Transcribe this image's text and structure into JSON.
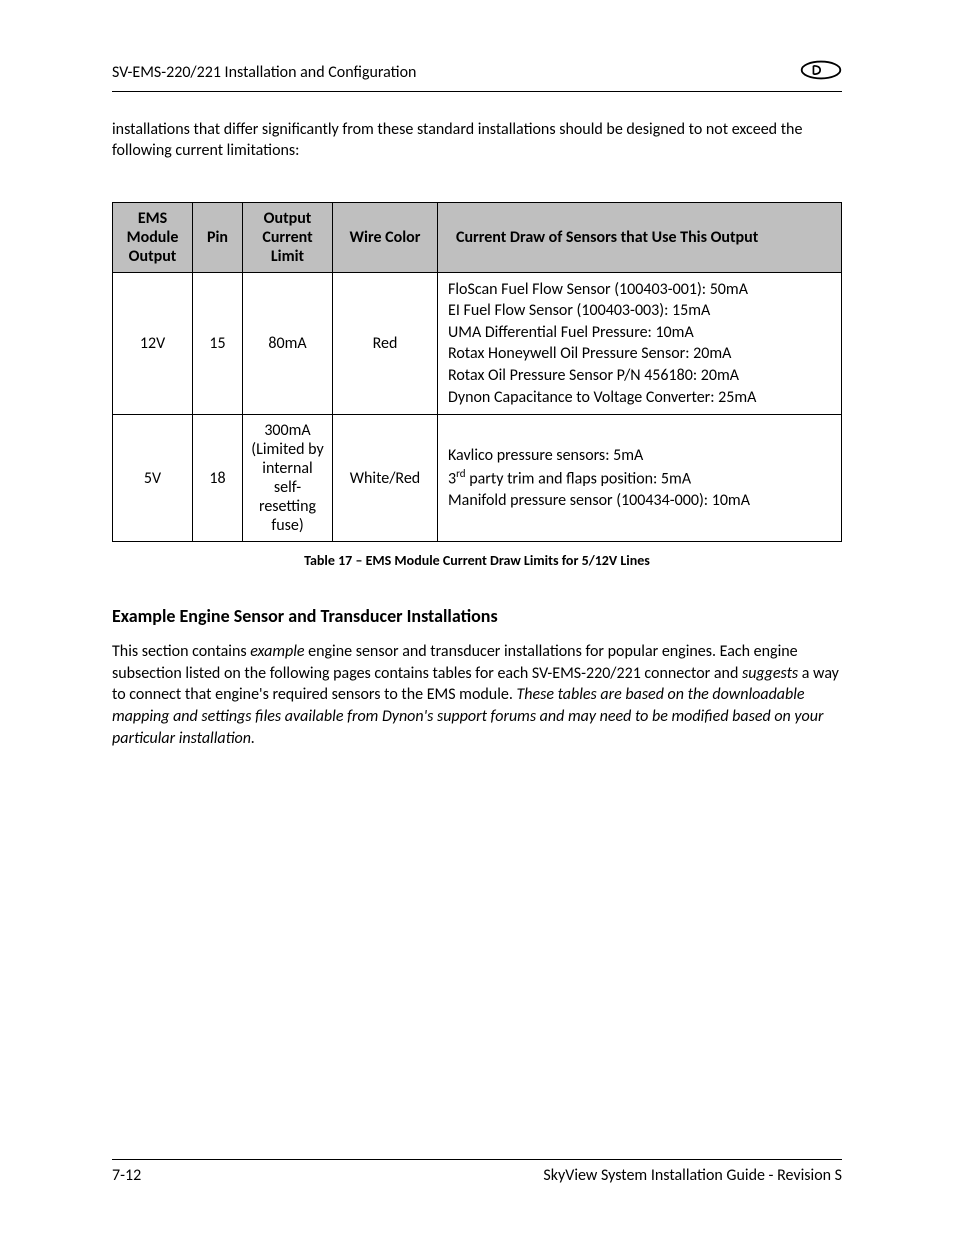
{
  "header": {
    "title": "SV-EMS-220/221 Installation and Configuration"
  },
  "intro": "installations that differ significantly from these standard installations should be designed to not exceed the following current limitations:",
  "table": {
    "headers": {
      "output": "EMS Module Output",
      "pin": "Pin",
      "limit": "Output Current Limit",
      "color": "Wire Color",
      "draw": "Current Draw of Sensors that Use This Output"
    },
    "rows": [
      {
        "output": "12V",
        "pin": "15",
        "limit": "80mA",
        "color": "Red",
        "draw_lines": [
          "FloScan Fuel Flow Sensor (100403-001): 50mA",
          "EI Fuel Flow Sensor (100403-003): 15mA",
          "UMA Differential Fuel Pressure: 10mA",
          "Rotax Honeywell Oil Pressure Sensor: 20mA",
          "Rotax Oil Pressure Sensor P/N 456180:  20mA",
          "Dynon Capacitance to Voltage Converter: 25mA"
        ]
      },
      {
        "output": "5V",
        "pin": "18",
        "limit": "300mA (Limited by internal self-resetting fuse)",
        "color": "White/Red",
        "draw_lines": [
          "Kavlico pressure sensors: 5mA",
          "3__SUP_rd__ party trim and flaps position: 5mA",
          "Manifold pressure sensor (100434-000): 10mA"
        ]
      }
    ],
    "caption": "Table 17 – EMS Module Current Draw Limits for 5/12V Lines"
  },
  "section": {
    "heading": "Example Engine Sensor and Transducer Installations",
    "body_html": "This section contains <em>example</em> engine sensor and transducer installations for popular engines. Each engine subsection listed on the following pages contains tables for each SV-EMS-220/221 connector and <em>suggests</em> a way to connect that engine's required sensors to the EMS module. <em>These tables are based on the downloadable mapping and settings files available from Dynon's support forums and may need to be modified based on your particular installation.</em>"
  },
  "footer": {
    "page": "7-12",
    "guide": "SkyView System Installation Guide - Revision S"
  },
  "colors": {
    "header_bg": "#bfbfbf",
    "text": "#000000",
    "border": "#000000",
    "background": "#ffffff"
  },
  "typography": {
    "body_fontsize": 16,
    "caption_fontsize": 14,
    "heading_fontsize": 18
  }
}
